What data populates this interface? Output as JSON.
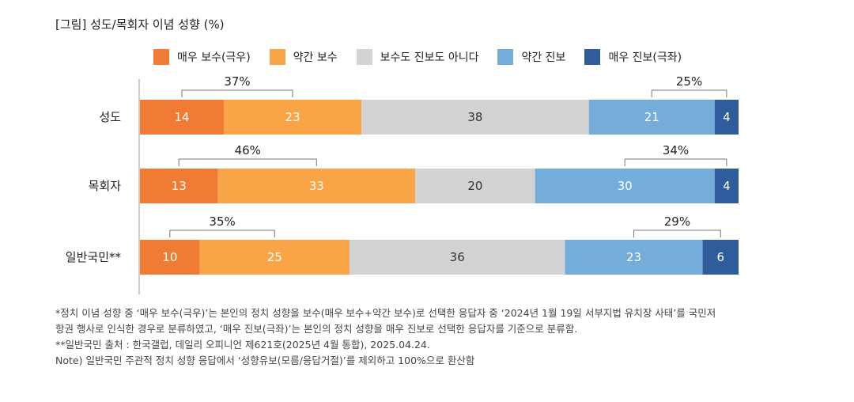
{
  "title": "[그림] 성도/목회자 이념 성향 (%)",
  "legend": [
    {
      "label": "매우 보수(극우)",
      "color": "#F07B34"
    },
    {
      "label": "약간 보수",
      "color": "#F9A447"
    },
    {
      "label": "보수도 진보도 아니다",
      "color": "#D3D3D3"
    },
    {
      "label": "약간 진보",
      "color": "#74ADDA"
    },
    {
      "label": "매우 진보(극좌)",
      "color": "#2F5C9B"
    }
  ],
  "chart_data": {
    "type": "bar",
    "orientation": "horizontal-stacked",
    "title": "[그림] 성도/목회자 이념 성향 (%)",
    "categories": [
      "성도",
      "목회자",
      "일반국민**"
    ],
    "series": [
      {
        "name": "매우 보수(극우)",
        "values": [
          14,
          13,
          10
        ]
      },
      {
        "name": "약간 보수",
        "values": [
          23,
          33,
          25
        ]
      },
      {
        "name": "보수도 진보도 아니다",
        "values": [
          38,
          20,
          36
        ]
      },
      {
        "name": "약간 진보",
        "values": [
          21,
          30,
          23
        ]
      },
      {
        "name": "매우 진보(극좌)",
        "values": [
          4,
          4,
          6
        ]
      }
    ],
    "conservative_totals": [
      "37%",
      "46%",
      "35%"
    ],
    "progressive_totals": [
      "25%",
      "34%",
      "29%"
    ],
    "xlim": [
      0,
      100
    ],
    "xlabel": "",
    "ylabel": ""
  },
  "notes": [
    "*정치 이념 성향 중 ‘매우 보수(극우)’는 본인의 정치 성향을 보수(매우 보수+약간 보수)로 선택한 응답자 중 ‘2024년 1월 19일 서부지법 유치장 사태’를 국민저",
    "항권 행사로 인식한 경우로 분류하였고, ‘매우 진보(극좌)’는 본인의 정치 성향을 매우 진보로 선택한 응답자를 기준으로 분류함.",
    "**일반국민 출처 : 한국갤럽, 데일리 오피니언 제621호(2025년 4월 통합), 2025.04.24.",
    "Note) 일반국민 주관적 정치 성향 응답에서 ‘성향유보(모름/응답거절)’를 제외하고 100%으로 환산함"
  ]
}
